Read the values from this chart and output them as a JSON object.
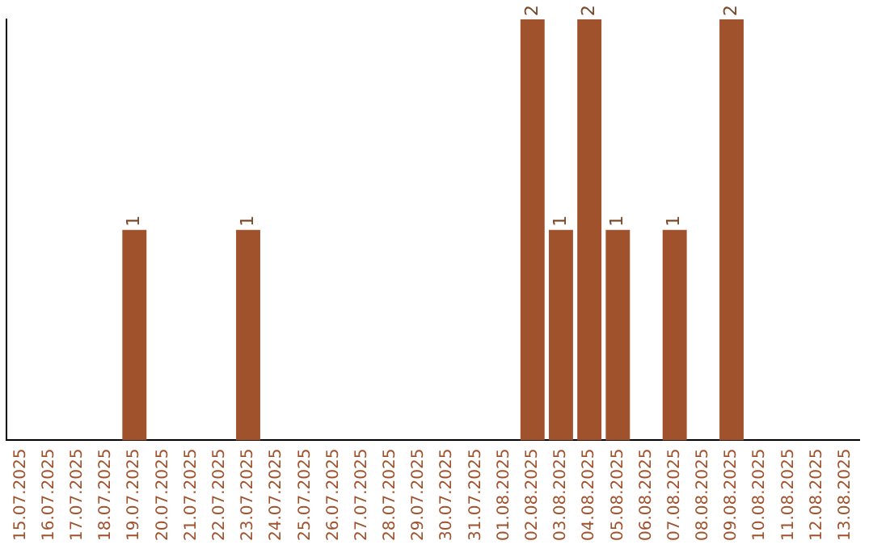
{
  "chart_data": {
    "type": "bar",
    "categories": [
      "15.07.2025",
      "16.07.2025",
      "17.07.2025",
      "18.07.2025",
      "19.07.2025",
      "20.07.2025",
      "21.07.2025",
      "22.07.2025",
      "23.07.2025",
      "24.07.2025",
      "25.07.2025",
      "26.07.2025",
      "27.07.2025",
      "28.07.2025",
      "29.07.2025",
      "30.07.2025",
      "31.07.2025",
      "01.08.2025",
      "02.08.2025",
      "03.08.2025",
      "04.08.2025",
      "05.08.2025",
      "06.08.2025",
      "07.08.2025",
      "08.08.2025",
      "09.08.2025",
      "10.08.2025",
      "11.08.2025",
      "12.08.2025",
      "13.08.2025"
    ],
    "values": [
      0,
      0,
      0,
      0,
      1,
      0,
      0,
      0,
      1,
      0,
      0,
      0,
      0,
      0,
      0,
      0,
      0,
      0,
      2,
      1,
      2,
      1,
      0,
      1,
      0,
      2,
      0,
      0,
      0,
      0
    ],
    "value_labels": [
      null,
      null,
      null,
      null,
      "1",
      null,
      null,
      null,
      "1",
      null,
      null,
      null,
      null,
      null,
      null,
      null,
      null,
      null,
      "2",
      "1",
      "2",
      "1",
      null,
      "1",
      null,
      "2",
      null,
      null,
      null,
      null
    ],
    "color": "#a0522d",
    "tick_labels": "x",
    "legend": false
  }
}
